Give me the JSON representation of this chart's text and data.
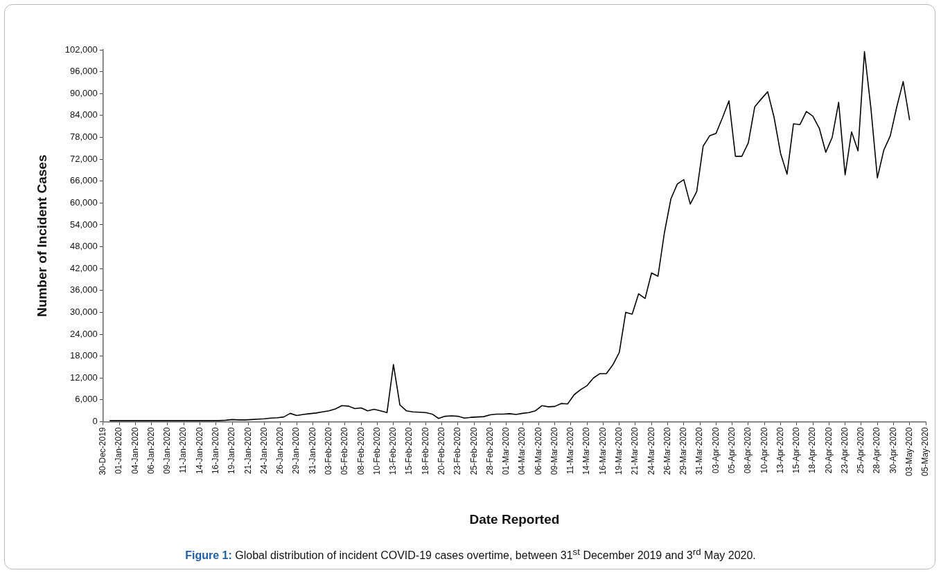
{
  "chart_data": {
    "type": "line",
    "xlabel": "Date Reported",
    "ylabel": "Number of Incident Cases",
    "annotations": [
      "Figure 1:",
      "Global distribution of incident COVID-19 cases overtime, between 31$^{st}$ December 2019 and 3$^{rd}$ May 2020."
    ],
    "xlim": [
      "2019-12-30",
      "2020-05-05T12:00"
    ],
    "xticks": [
      {
        "value": "2019-12-30",
        "label": "30-Dec-2019"
      },
      {
        "value": "2020-01-01T12:00",
        "label": "01-Jan-2020"
      },
      {
        "value": "2020-01-04",
        "label": "04-Jan-2020"
      },
      {
        "value": "2020-01-06T12:00",
        "label": "06-Jan-2020"
      },
      {
        "value": "2020-01-09",
        "label": "09-Jan-2020"
      },
      {
        "value": "2020-01-11T12:00",
        "label": "11-Jan-2020"
      },
      {
        "value": "2020-01-14",
        "label": "14-Jan-2020"
      },
      {
        "value": "2020-01-16T12:00",
        "label": "16-Jan-2020"
      },
      {
        "value": "2020-01-19",
        "label": "19-Jan-2020"
      },
      {
        "value": "2020-01-21T12:00",
        "label": "21-Jan-2020"
      },
      {
        "value": "2020-01-24",
        "label": "24-Jan-2020"
      },
      {
        "value": "2020-01-26T12:00",
        "label": "26-Jan-2020"
      },
      {
        "value": "2020-01-29",
        "label": "29-Jan-2020"
      },
      {
        "value": "2020-01-31T12:00",
        "label": "31-Jan-2020"
      },
      {
        "value": "2020-02-03",
        "label": "03-Feb-2020"
      },
      {
        "value": "2020-02-05T12:00",
        "label": "05-Feb-2020"
      },
      {
        "value": "2020-02-08",
        "label": "08-Feb-2020"
      },
      {
        "value": "2020-02-10T12:00",
        "label": "10-Feb-2020"
      },
      {
        "value": "2020-02-13",
        "label": "13-Feb-2020"
      },
      {
        "value": "2020-02-15T12:00",
        "label": "15-Feb-2020"
      },
      {
        "value": "2020-02-18",
        "label": "18-Feb-2020"
      },
      {
        "value": "2020-02-20T12:00",
        "label": "20-Feb-2020"
      },
      {
        "value": "2020-02-23",
        "label": "23-Feb-2020"
      },
      {
        "value": "2020-02-25T12:00",
        "label": "25-Feb-2020"
      },
      {
        "value": "2020-02-28",
        "label": "28-Feb-2020"
      },
      {
        "value": "2020-03-01T12:00",
        "label": "01-Mar-2020"
      },
      {
        "value": "2020-03-04",
        "label": "04-Mar-2020"
      },
      {
        "value": "2020-03-06T12:00",
        "label": "06-Mar-2020"
      },
      {
        "value": "2020-03-09",
        "label": "09-Mar-2020"
      },
      {
        "value": "2020-03-11T12:00",
        "label": "11-Mar-2020"
      },
      {
        "value": "2020-03-14",
        "label": "14-Mar-2020"
      },
      {
        "value": "2020-03-16T12:00",
        "label": "16-Mar-2020"
      },
      {
        "value": "2020-03-19",
        "label": "19-Mar-2020"
      },
      {
        "value": "2020-03-21T12:00",
        "label": "21-Mar-2020"
      },
      {
        "value": "2020-03-24",
        "label": "24-Mar-2020"
      },
      {
        "value": "2020-03-26T12:00",
        "label": "26-Mar-2020"
      },
      {
        "value": "2020-03-29",
        "label": "29-Mar-2020"
      },
      {
        "value": "2020-03-31T12:00",
        "label": "31-Mar-2020"
      },
      {
        "value": "2020-04-03",
        "label": "03-Apr-2020"
      },
      {
        "value": "2020-04-05T12:00",
        "label": "05-Apr-2020"
      },
      {
        "value": "2020-04-08",
        "label": "08-Apr-2020"
      },
      {
        "value": "2020-04-10T12:00",
        "label": "10-Apr-2020"
      },
      {
        "value": "2020-04-13",
        "label": "13-Apr-2020"
      },
      {
        "value": "2020-04-15T12:00",
        "label": "15-Apr-2020"
      },
      {
        "value": "2020-04-18",
        "label": "18-Apr-2020"
      },
      {
        "value": "2020-04-20T12:00",
        "label": "20-Apr-2020"
      },
      {
        "value": "2020-04-23",
        "label": "23-Apr-2020"
      },
      {
        "value": "2020-04-25T12:00",
        "label": "25-Apr-2020"
      },
      {
        "value": "2020-04-28",
        "label": "28-Apr-2020"
      },
      {
        "value": "2020-04-30T12:00",
        "label": "30-Apr-2020"
      },
      {
        "value": "2020-05-03",
        "label": "03-May-2020"
      },
      {
        "value": "2020-05-05T12:00",
        "label": "05-May-2020"
      }
    ],
    "ylim": [
      0,
      102000
    ],
    "yticks": [
      0,
      {
        "value": 6000,
        "label": "6,000"
      },
      {
        "value": 12000,
        "label": "12,000"
      },
      {
        "value": 18000,
        "label": "18,000"
      },
      {
        "value": 24000,
        "label": "24,000"
      },
      {
        "value": 30000,
        "label": "30,000"
      },
      {
        "value": 36000,
        "label": "36,000"
      },
      {
        "value": 42000,
        "label": "42,000"
      },
      {
        "value": 48000,
        "label": "48,000"
      },
      {
        "value": 54000,
        "label": "54,000"
      },
      {
        "value": 60000,
        "label": "60,000"
      },
      {
        "value": 66000,
        "label": "66,000"
      },
      {
        "value": 72000,
        "label": "72,000"
      },
      {
        "value": 78000,
        "label": "78,000"
      },
      {
        "value": 84000,
        "label": "84,000"
      },
      {
        "value": 90000,
        "label": "90,000"
      },
      {
        "value": 96000,
        "label": "96,000"
      },
      {
        "value": 102000,
        "label": "102,000"
      }
    ],
    "grid": false,
    "series": [
      {
        "color": "#000000",
        "x": [
          "2019-12-31",
          "2020-01-01",
          "2020-01-02",
          "2020-01-03",
          "2020-01-04",
          "2020-01-05",
          "2020-01-06",
          "2020-01-07",
          "2020-01-08",
          "2020-01-09",
          "2020-01-10",
          "2020-01-11",
          "2020-01-12",
          "2020-01-13",
          "2020-01-14",
          "2020-01-15",
          "2020-01-16",
          "2020-01-17",
          "2020-01-18",
          "2020-01-19",
          "2020-01-20",
          "2020-01-21",
          "2020-01-22",
          "2020-01-23",
          "2020-01-24",
          "2020-01-25",
          "2020-01-26",
          "2020-01-27",
          "2020-01-28",
          "2020-01-29",
          "2020-01-30",
          "2020-01-31",
          "2020-02-01",
          "2020-02-02",
          "2020-02-03",
          "2020-02-04",
          "2020-02-05",
          "2020-02-06",
          "2020-02-07",
          "2020-02-08",
          "2020-02-09",
          "2020-02-10",
          "2020-02-11",
          "2020-02-12",
          "2020-02-13",
          "2020-02-14",
          "2020-02-15",
          "2020-02-16",
          "2020-02-17",
          "2020-02-18",
          "2020-02-19",
          "2020-02-20",
          "2020-02-21",
          "2020-02-22",
          "2020-02-23",
          "2020-02-24",
          "2020-02-25",
          "2020-02-26",
          "2020-02-27",
          "2020-02-28",
          "2020-02-29",
          "2020-03-01",
          "2020-03-02",
          "2020-03-03",
          "2020-03-04",
          "2020-03-05",
          "2020-03-06",
          "2020-03-07",
          "2020-03-08",
          "2020-03-09",
          "2020-03-10",
          "2020-03-11",
          "2020-03-12",
          "2020-03-13",
          "2020-03-14",
          "2020-03-15",
          "2020-03-16",
          "2020-03-17",
          "2020-03-18",
          "2020-03-19",
          "2020-03-20",
          "2020-03-21",
          "2020-03-22",
          "2020-03-23",
          "2020-03-24",
          "2020-03-25",
          "2020-03-26",
          "2020-03-27",
          "2020-03-28",
          "2020-03-29",
          "2020-03-30",
          "2020-03-31",
          "2020-04-01",
          "2020-04-02",
          "2020-04-03",
          "2020-04-04",
          "2020-04-05",
          "2020-04-06",
          "2020-04-07",
          "2020-04-08",
          "2020-04-09",
          "2020-04-10",
          "2020-04-11",
          "2020-04-12",
          "2020-04-13",
          "2020-04-14",
          "2020-04-15",
          "2020-04-16",
          "2020-04-17",
          "2020-04-18",
          "2020-04-19",
          "2020-04-20",
          "2020-04-21",
          "2020-04-22",
          "2020-04-23",
          "2020-04-24",
          "2020-04-25",
          "2020-04-26",
          "2020-04-27",
          "2020-04-28",
          "2020-04-29",
          "2020-04-30",
          "2020-05-01",
          "2020-05-02",
          "2020-05-03"
        ],
        "values": [
          300,
          300,
          300,
          300,
          300,
          300,
          300,
          300,
          300,
          300,
          300,
          300,
          300,
          300,
          300,
          300,
          300,
          300,
          400,
          600,
          500,
          500,
          600,
          700,
          800,
          1000,
          1100,
          1300,
          2300,
          1700,
          2000,
          2200,
          2400,
          2700,
          3000,
          3500,
          4400,
          4300,
          3600,
          3800,
          3000,
          3400,
          3000,
          2500,
          15700,
          4600,
          3000,
          2700,
          2600,
          2500,
          2100,
          900,
          1500,
          1600,
          1500,
          1000,
          1200,
          1300,
          1400,
          1900,
          2100,
          2100,
          2200,
          2000,
          2300,
          2500,
          3000,
          4400,
          4100,
          4200,
          5000,
          4900,
          7400,
          8800,
          9900,
          12000,
          13200,
          13200,
          15600,
          19000,
          30000,
          29500,
          35100,
          33800,
          40800,
          39900,
          51900,
          61100,
          65200,
          66400,
          59700,
          63100,
          75600,
          78400,
          79100,
          83400,
          88000,
          72800,
          72800,
          76500,
          86400,
          88500,
          90500,
          83400,
          73600,
          67900,
          81700,
          81500,
          85100,
          83800,
          80500,
          73900,
          78000,
          87600,
          67700,
          79500,
          74300,
          101500,
          86000,
          66900,
          74500,
          78400,
          86300,
          93300,
          82700
        ]
      }
    ]
  }
}
